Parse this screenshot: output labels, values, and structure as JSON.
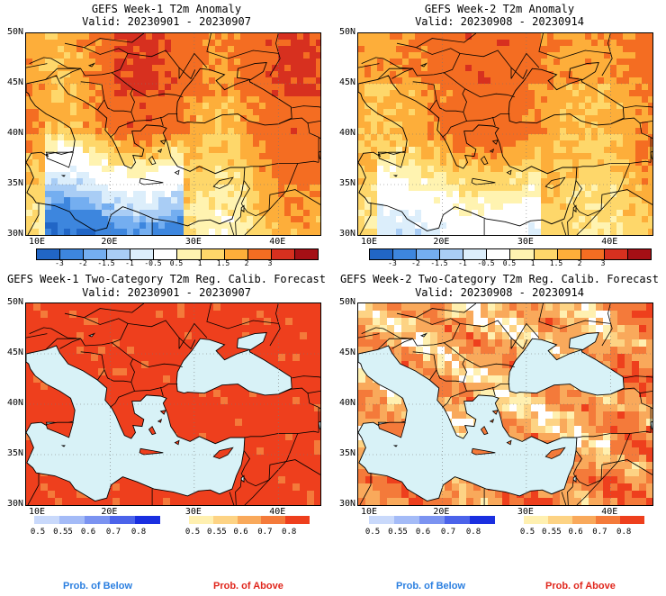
{
  "panels": [
    {
      "title": "GEFS Week-1 T2m Anomaly",
      "subtitle": "Valid: 20230901 - 20230907",
      "type": "anomaly",
      "week": 1
    },
    {
      "title": "GEFS Week-2 T2m Anomaly",
      "subtitle": "Valid: 20230908 - 20230914",
      "type": "anomaly",
      "week": 2
    },
    {
      "title": "GEFS Week-1 Two-Category T2m Reg. Calib. Forecast",
      "subtitle": "Valid: 20230901 - 20230907",
      "type": "prob",
      "week": 1
    },
    {
      "title": "GEFS Week-2 Two-Category T2m Reg. Calib. Forecast",
      "subtitle": "Valid: 20230908 - 20230914",
      "type": "prob",
      "week": 2
    }
  ],
  "lat_labels": [
    "50N",
    "45N",
    "40N",
    "35N",
    "30N"
  ],
  "lon_labels": [
    "10E",
    "20E",
    "30E",
    "40E"
  ],
  "anomaly_scale": {
    "labels": [
      "-3",
      "-2",
      "-1.5",
      "-1",
      "-0.5",
      "0.5",
      "1",
      "1.5",
      "2",
      "3"
    ],
    "colors": [
      "#2166c6",
      "#3d86de",
      "#74aef0",
      "#a9cdf5",
      "#dceefb",
      "#ffffff",
      "#fff3b0",
      "#fed76a",
      "#fdae3a",
      "#f46d22",
      "#d7301f",
      "#a50f15"
    ]
  },
  "prob_below_scale": {
    "labels": [
      "0.5",
      "0.55",
      "0.6",
      "0.7",
      "0.8"
    ],
    "colors": [
      "#c9d9fb",
      "#a4bbf7",
      "#7b93f1",
      "#4b63ea",
      "#1a2fe0"
    ]
  },
  "prob_above_scale": {
    "labels": [
      "0.5",
      "0.55",
      "0.6",
      "0.7",
      "0.8"
    ],
    "colors": [
      "#fff0b0",
      "#fdd384",
      "#f9a95b",
      "#f47a3a",
      "#ee3f1d"
    ]
  },
  "footer": {
    "below": "Prob. of Below",
    "above": "Prob. of Above",
    "below_color": "#2b7fe0",
    "above_color": "#e0261c"
  }
}
